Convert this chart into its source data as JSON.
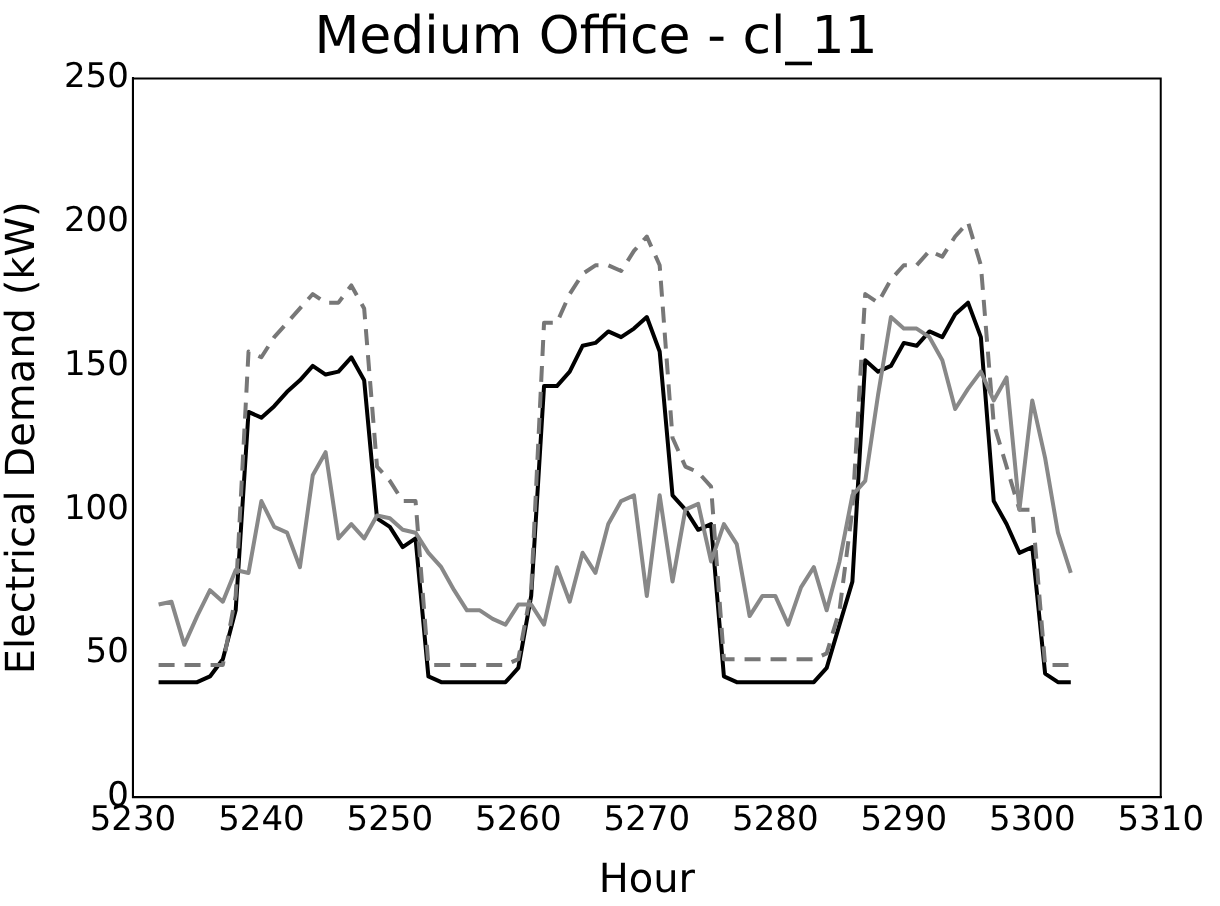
{
  "chart_data": {
    "type": "line",
    "title": "Medium Office - cl_11",
    "xlabel": "Hour",
    "ylabel": "Electrical Demand (kW)",
    "x": [
      5232,
      5233,
      5234,
      5235,
      5236,
      5237,
      5238,
      5239,
      5240,
      5241,
      5242,
      5243,
      5244,
      5245,
      5246,
      5247,
      5248,
      5249,
      5250,
      5251,
      5252,
      5253,
      5254,
      5255,
      5256,
      5257,
      5258,
      5259,
      5260,
      5261,
      5262,
      5263,
      5264,
      5265,
      5266,
      5267,
      5268,
      5269,
      5270,
      5271,
      5272,
      5273,
      5274,
      5275,
      5276,
      5277,
      5278,
      5279,
      5280,
      5281,
      5282,
      5283,
      5284,
      5285,
      5286,
      5287,
      5288,
      5289,
      5290,
      5291,
      5292,
      5293,
      5294,
      5295,
      5296,
      5297,
      5298,
      5299,
      5300,
      5301,
      5302,
      5303
    ],
    "series": [
      {
        "color": "#888888",
        "line_style": "solid",
        "values": [
          67,
          68,
          53,
          63,
          72,
          68,
          79,
          78,
          103,
          94,
          92,
          80,
          112,
          120,
          90,
          95,
          90,
          98,
          97,
          93,
          92,
          85,
          80,
          72,
          65,
          65,
          62,
          60,
          67,
          67,
          60,
          80,
          68,
          85,
          78,
          95,
          103,
          105,
          70,
          105,
          75,
          100,
          102,
          82,
          95,
          88,
          63,
          70,
          70,
          60,
          73,
          80,
          65,
          82,
          105,
          110,
          140,
          167,
          163,
          163,
          160,
          152,
          135,
          142,
          148,
          138,
          146,
          100,
          138,
          118,
          92,
          78
        ]
      },
      {
        "color": "#777777",
        "line_style": "dashed",
        "values": [
          46,
          46,
          46,
          46,
          46,
          46,
          70,
          155,
          153,
          160,
          165,
          170,
          175,
          172,
          172,
          178,
          170,
          115,
          110,
          103,
          103,
          46,
          46,
          46,
          46,
          46,
          46,
          46,
          48,
          72,
          165,
          165,
          175,
          182,
          185,
          185,
          183,
          190,
          195,
          185,
          125,
          115,
          113,
          108,
          48,
          48,
          48,
          48,
          48,
          48,
          48,
          48,
          50,
          65,
          100,
          175,
          172,
          180,
          185,
          185,
          190,
          188,
          195,
          200,
          185,
          130,
          115,
          100,
          100,
          46,
          46,
          46
        ]
      },
      {
        "color": "#000000",
        "line_style": "solid",
        "values": [
          40,
          40,
          40,
          40,
          42,
          48,
          65,
          134,
          132,
          136,
          141,
          145,
          150,
          147,
          148,
          153,
          145,
          97,
          94,
          87,
          90,
          42,
          40,
          40,
          40,
          40,
          40,
          40,
          45,
          70,
          143,
          143,
          148,
          157,
          158,
          162,
          160,
          163,
          167,
          155,
          105,
          100,
          93,
          95,
          42,
          40,
          40,
          40,
          40,
          40,
          40,
          40,
          45,
          60,
          75,
          152,
          148,
          150,
          158,
          157,
          162,
          160,
          168,
          172,
          160,
          103,
          95,
          85,
          87,
          43,
          40,
          40
        ]
      }
    ],
    "xlim": [
      5230,
      5310
    ],
    "xticks": [
      5230,
      5240,
      5250,
      5260,
      5270,
      5280,
      5290,
      5300,
      5310
    ],
    "ylim": [
      0,
      250
    ],
    "yticks": [
      0,
      50,
      100,
      150,
      200,
      250
    ],
    "grid": false,
    "legend": false,
    "marker": "none"
  }
}
